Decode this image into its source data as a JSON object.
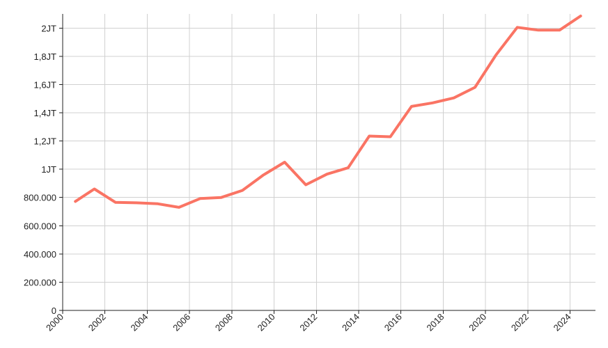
{
  "chart_data": {
    "type": "line",
    "title": "",
    "xlabel": "",
    "ylabel": "",
    "x_ticks": [
      "2000",
      "2002",
      "2004",
      "2006",
      "2008",
      "2010",
      "2012",
      "2014",
      "2016",
      "2018",
      "2020",
      "2022",
      "2024"
    ],
    "y_ticks": [
      "0",
      "200.000",
      "400.000",
      "600.000",
      "800.000",
      "1JT",
      "1,2JT",
      "1,4JT",
      "1,6JT",
      "1,8JT",
      "2JT"
    ],
    "xlim": [
      2000,
      2025.2
    ],
    "ylim": [
      0,
      2100000
    ],
    "grid": true,
    "legend": "none",
    "series": [
      {
        "color": "#fa7464",
        "points": [
          [
            2000.6,
            772000
          ],
          [
            2001.5,
            860000
          ],
          [
            2002.5,
            765000
          ],
          [
            2003.5,
            762000
          ],
          [
            2004.5,
            755000
          ],
          [
            2005.5,
            730000
          ],
          [
            2006.5,
            792000
          ],
          [
            2007.5,
            800000
          ],
          [
            2008.5,
            850000
          ],
          [
            2009.5,
            960000
          ],
          [
            2010.5,
            1050000
          ],
          [
            2011.5,
            890000
          ],
          [
            2012.5,
            965000
          ],
          [
            2013.5,
            1010000
          ],
          [
            2014.5,
            1235000
          ],
          [
            2015.5,
            1230000
          ],
          [
            2016.5,
            1445000
          ],
          [
            2017.5,
            1470000
          ],
          [
            2018.5,
            1505000
          ],
          [
            2019.5,
            1580000
          ],
          [
            2020.5,
            1810000
          ],
          [
            2021.5,
            2005000
          ],
          [
            2022.5,
            1985000
          ],
          [
            2023.5,
            1985000
          ],
          [
            2024.5,
            2085000
          ]
        ]
      }
    ]
  }
}
